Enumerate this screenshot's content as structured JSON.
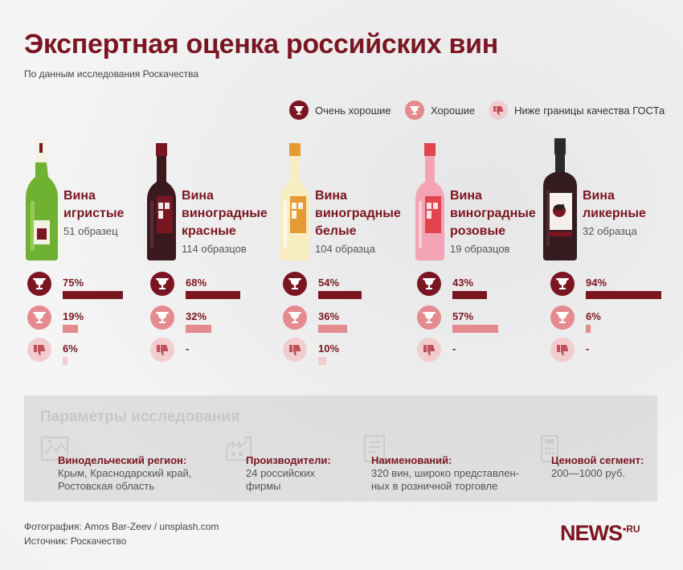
{
  "header": {
    "title": "Экспертная оценка российских вин",
    "subtitle": "По данным исследования Роскачества"
  },
  "legend": [
    {
      "label": "Очень хорошие",
      "icon": "trophy-icon"
    },
    {
      "label": "Хорошие",
      "icon": "cup-icon"
    },
    {
      "label": "Ниже границы качества ГОСТа",
      "icon": "thumbs-down-icon"
    }
  ],
  "colors": {
    "very_good": "#7a1621",
    "good": "#e58a8f",
    "below": "#f1cdd0"
  },
  "chart_data": {
    "type": "bar",
    "title": "Экспертная оценка российских вин",
    "subtitle": "По данным исследования Роскачества",
    "unit": "%",
    "categories": [
      {
        "name_lines": [
          "Вина",
          "игристые"
        ],
        "count": "51 образец",
        "bottle": "sparkling"
      },
      {
        "name_lines": [
          "Вина",
          "виноградные",
          "красные"
        ],
        "count": "114 образцов",
        "bottle": "red"
      },
      {
        "name_lines": [
          "Вина",
          "виноградные",
          "белые"
        ],
        "count": "104 образца",
        "bottle": "white"
      },
      {
        "name_lines": [
          "Вина",
          "виноградные",
          "розовые"
        ],
        "count": "19 образцов",
        "bottle": "rose"
      },
      {
        "name_lines": [
          "Вина",
          "ликерные"
        ],
        "count": "32 образца",
        "bottle": "liqueur"
      }
    ],
    "series": [
      {
        "name": "Очень хорошие",
        "values": [
          75,
          68,
          54,
          43,
          94
        ],
        "labels": [
          "75%",
          "68%",
          "54%",
          "43%",
          "94%"
        ]
      },
      {
        "name": "Хорошие",
        "values": [
          19,
          32,
          36,
          57,
          6
        ],
        "labels": [
          "19%",
          "32%",
          "36%",
          "57%",
          "6%"
        ]
      },
      {
        "name": "Ниже границы качества ГОСТа",
        "values": [
          6,
          0,
          10,
          0,
          0
        ],
        "labels": [
          "6%",
          "-",
          "10%",
          "-",
          "-"
        ]
      }
    ]
  },
  "params": {
    "title": "Параметры исследования",
    "items": [
      {
        "label": "Винодельческий регион:",
        "value": "Крым, Краснодарский край,\nРостовская область",
        "icon": "map-icon"
      },
      {
        "label": "Производители:",
        "value": "24 российских\nфирмы",
        "icon": "factory-icon"
      },
      {
        "label": "Наименований:",
        "value": "320 вин, широко представлен-\nных в розничной торговле",
        "icon": "document-icon"
      },
      {
        "label": "Ценовой сегмент:",
        "value": "200—1000 руб.",
        "icon": "price-icon"
      }
    ]
  },
  "footer": {
    "photo": "Фотография: Amos Bar-Zeev / unsplash.com",
    "source": "Источник: Роскачество"
  },
  "logo": {
    "main": "NEWS",
    "sup": "•RU"
  }
}
